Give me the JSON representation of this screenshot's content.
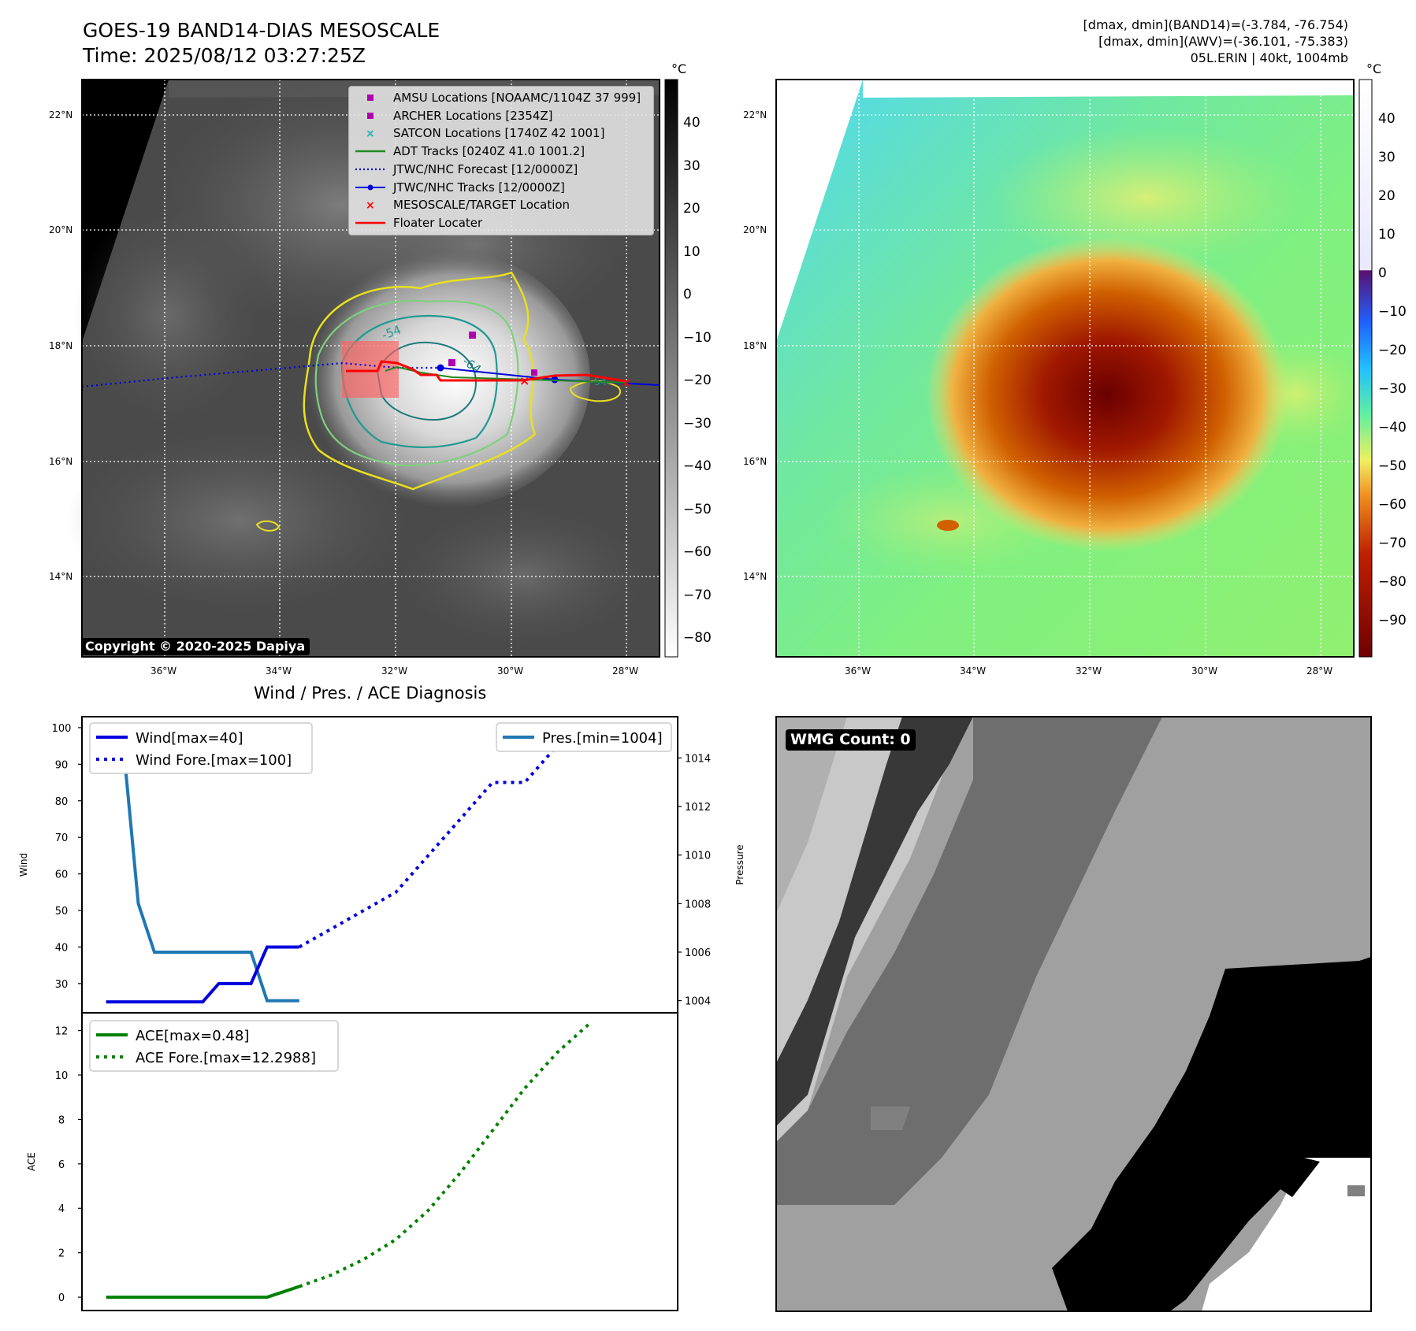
{
  "header": {
    "title_line1": "GOES-19 BAND14-DIAS MESOSCALE",
    "title_line2": "Time: 2025/08/12 03:27:25Z",
    "info_line1": "[dmax, dmin](BAND14)=(-3.784, -76.754)",
    "info_line2": "[dmax, dmin](AWV)=(-36.101, -75.383)",
    "info_line3": "05L.ERIN | 40kt, 1004mb"
  },
  "ir_panel": {
    "copyright": "Copyright © 2020-2025 Dapiya",
    "lat_labels": [
      "22°N",
      "20°N",
      "18°N",
      "16°N",
      "14°N"
    ],
    "lon_labels": [
      "36°W",
      "34°W",
      "32°W",
      "30°W",
      "28°W"
    ],
    "contour_labels": [
      "-54",
      "-64",
      "-54"
    ],
    "legend": [
      {
        "label": "AMSU Locations [NOAAMC/1104Z 37 999]",
        "color": "#b000b0",
        "marker": "square"
      },
      {
        "label": "ARCHER Locations [2354Z]",
        "color": "#b000b0",
        "marker": "square"
      },
      {
        "label": "SATCON Locations [1740Z 42 1001]",
        "color": "#20b0b0",
        "marker": "x"
      },
      {
        "label": "ADT Tracks [0240Z 41.0 1001.2]",
        "color": "#228B22",
        "marker": "line"
      },
      {
        "label": "JTWC/NHC Forecast [12/0000Z]",
        "color": "#0000dd",
        "marker": "dotted"
      },
      {
        "label": "JTWC/NHC Tracks [12/0000Z]",
        "color": "#0000dd",
        "marker": "line-dot"
      },
      {
        "label": "MESOSCALE/TARGET Location",
        "color": "#ff0000",
        "marker": "x"
      },
      {
        "label": "Floater Locater",
        "color": "#ff0000",
        "marker": "line"
      }
    ],
    "colorbar_unit": "°C",
    "colorbar_ticks": [
      "40",
      "30",
      "20",
      "10",
      "0",
      "−10",
      "−20",
      "−30",
      "−40",
      "−50",
      "−60",
      "−70",
      "−80"
    ]
  },
  "awv_panel": {
    "lat_labels": [
      "22°N",
      "20°N",
      "18°N",
      "16°N",
      "14°N"
    ],
    "lon_labels": [
      "36°W",
      "34°W",
      "32°W",
      "30°W",
      "28°W"
    ],
    "colorbar_unit": "°C",
    "colorbar_ticks": [
      "40",
      "30",
      "20",
      "10",
      "0",
      "−10",
      "−20",
      "−30",
      "−40",
      "−50",
      "−60",
      "−70",
      "−80",
      "−90"
    ]
  },
  "diag": {
    "title": "Wind / Pres. / ACE Diagnosis",
    "wind_ylabel": "Wind",
    "pres_ylabel": "Pressure",
    "ace_ylabel": "ACE",
    "legend_wind": "Wind[max=40]",
    "legend_wind_fore": "Wind Fore.[max=100]",
    "legend_pres": "Pres.[min=1004]",
    "legend_ace": "ACE[max=0.48]",
    "legend_ace_fore": "ACE Fore.[max=12.2988]"
  },
  "wmg": {
    "label": "WMG Count: 0"
  },
  "chart_data": [
    {
      "type": "line",
      "title": "Wind / Pres. / ACE Diagnosis",
      "ylabel": "Wind",
      "ylim": [
        22,
        103
      ],
      "yticks": [
        30,
        40,
        50,
        60,
        70,
        80,
        90,
        100
      ],
      "series": [
        {
          "name": "Wind[max=40]",
          "x": [
            0,
            1,
            2,
            3,
            4,
            5,
            6,
            7,
            8,
            9,
            10,
            11,
            12
          ],
          "values": [
            25,
            25,
            25,
            25,
            25,
            25,
            25,
            30,
            30,
            30,
            40,
            40,
            40
          ],
          "color": "#0000dd",
          "style": "solid"
        },
        {
          "name": "Wind Fore.[max=100]",
          "x": [
            12,
            14,
            16,
            18,
            20,
            22,
            24,
            26,
            28,
            30
          ],
          "values": [
            40,
            45,
            50,
            55,
            65,
            75,
            85,
            85,
            95,
            100
          ],
          "color": "#0000dd",
          "style": "dotted"
        }
      ]
    },
    {
      "type": "line",
      "ylabel": "Pressure",
      "ylim": [
        1003.5,
        1015.7
      ],
      "yticks": [
        1004,
        1006,
        1008,
        1010,
        1012,
        1014
      ],
      "series": [
        {
          "name": "Pres.[min=1004]",
          "x": [
            0,
            1,
            2,
            3,
            4,
            5,
            6,
            7,
            8,
            9,
            10,
            11,
            12
          ],
          "values": [
            1015,
            1015,
            1008,
            1006,
            1006,
            1006,
            1006,
            1006,
            1006,
            1006,
            1004,
            1004,
            1004
          ],
          "color": "#1f77b4",
          "style": "solid"
        }
      ]
    },
    {
      "type": "line",
      "ylabel": "ACE",
      "ylim": [
        -0.6,
        12.8
      ],
      "yticks": [
        0,
        2,
        4,
        6,
        8,
        10,
        12
      ],
      "series": [
        {
          "name": "ACE[max=0.48]",
          "x": [
            0,
            2,
            4,
            6,
            8,
            10,
            11,
            12
          ],
          "values": [
            0,
            0,
            0,
            0,
            0,
            0,
            0.24,
            0.48
          ],
          "color": "#008000",
          "style": "solid"
        },
        {
          "name": "ACE Fore.[max=12.2988]",
          "x": [
            12,
            14,
            16,
            18,
            20,
            22,
            24,
            26,
            28,
            30
          ],
          "values": [
            0.48,
            1.0,
            1.7,
            2.6,
            3.9,
            5.6,
            7.5,
            9.4,
            11.0,
            12.2988
          ],
          "color": "#008000",
          "style": "dotted"
        }
      ]
    }
  ]
}
